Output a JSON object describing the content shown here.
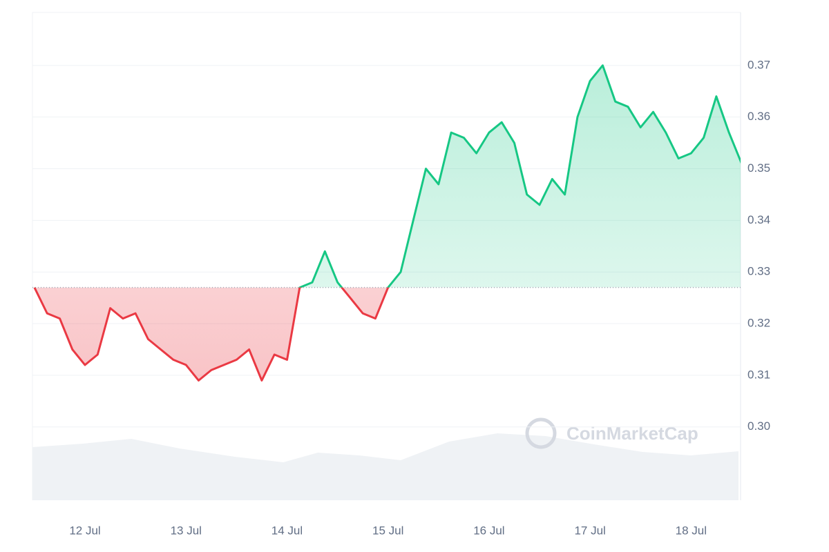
{
  "chart_data": {
    "type": "line",
    "watermark": "CoinMarketCap",
    "x": [
      11.5,
      11.625,
      11.75,
      11.875,
      12.0,
      12.125,
      12.25,
      12.375,
      12.5,
      12.625,
      12.75,
      12.875,
      13.0,
      13.125,
      13.25,
      13.375,
      13.5,
      13.625,
      13.75,
      13.875,
      14.0,
      14.125,
      14.25,
      14.375,
      14.5,
      14.625,
      14.75,
      14.875,
      15.0,
      15.125,
      15.25,
      15.375,
      15.5,
      15.625,
      15.75,
      15.875,
      16.0,
      16.125,
      16.25,
      16.375,
      16.5,
      16.625,
      16.75,
      16.875,
      17.0,
      17.125,
      17.25,
      17.375,
      17.5,
      17.625,
      17.75,
      17.875,
      18.0,
      18.125,
      18.25,
      18.375,
      18.5
    ],
    "series": [
      {
        "values": [
          0.327,
          0.322,
          0.321,
          0.315,
          0.312,
          0.314,
          0.323,
          0.321,
          0.322,
          0.317,
          0.315,
          0.313,
          0.312,
          0.309,
          0.311,
          0.312,
          0.313,
          0.315,
          0.309,
          0.314,
          0.313,
          0.327,
          0.328,
          0.334,
          0.328,
          0.325,
          0.322,
          0.321,
          0.327,
          0.33,
          0.34,
          0.35,
          0.347,
          0.357,
          0.356,
          0.353,
          0.357,
          0.359,
          0.355,
          0.345,
          0.343,
          0.348,
          0.345,
          0.36,
          0.367,
          0.37,
          0.363,
          0.362,
          0.358,
          0.361,
          0.357,
          0.352,
          0.353,
          0.356,
          0.364,
          0.357,
          0.351
        ],
        "color_up": "#16c784",
        "color_down": "#ea3943"
      }
    ],
    "baseline": 0.327,
    "xlim": [
      11.48,
      18.49
    ],
    "xticks": [
      {
        "value": 12,
        "label": "12 Jul"
      },
      {
        "value": 13,
        "label": "13 Jul"
      },
      {
        "value": 14,
        "label": "14 Jul"
      },
      {
        "value": 15,
        "label": "15 Jul"
      },
      {
        "value": 16,
        "label": "16 Jul"
      },
      {
        "value": 17,
        "label": "17 Jul"
      },
      {
        "value": 18,
        "label": "18 Jul"
      }
    ],
    "ylim": [
      0.2858,
      0.38
    ],
    "yticks": [
      {
        "value": 0.3,
        "label": "0.30"
      },
      0.31,
      0.32,
      0.33,
      0.34,
      0.35,
      0.36,
      0.37
    ],
    "grid": true
  }
}
